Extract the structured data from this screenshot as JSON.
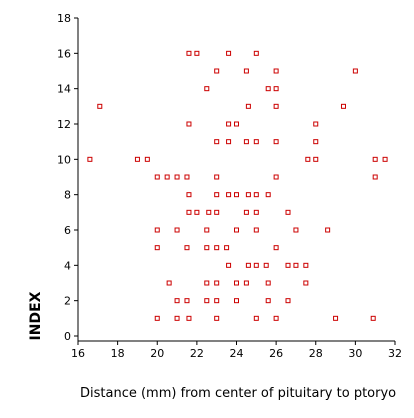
{
  "chart_data": {
    "type": "scatter",
    "title": "",
    "xlabel": "Distance (mm) from center of pituitary to ptoryo",
    "ylabel": "INDEX",
    "xlim": [
      16,
      32
    ],
    "ylim": [
      0,
      18
    ],
    "xticks": [
      16,
      18,
      20,
      22,
      24,
      26,
      28,
      30,
      32
    ],
    "yticks": [
      0,
      2,
      4,
      6,
      8,
      10,
      12,
      14,
      16,
      18
    ],
    "grid": false,
    "legend": "none",
    "marker": "hollow-square",
    "marker_color": "#cc0000",
    "points": [
      {
        "x": 21.6,
        "y": 16
      },
      {
        "x": 22.0,
        "y": 16
      },
      {
        "x": 23.6,
        "y": 16
      },
      {
        "x": 25.0,
        "y": 16
      },
      {
        "x": 23.0,
        "y": 15
      },
      {
        "x": 24.5,
        "y": 15
      },
      {
        "x": 26.0,
        "y": 15
      },
      {
        "x": 30.0,
        "y": 15
      },
      {
        "x": 22.5,
        "y": 14
      },
      {
        "x": 25.6,
        "y": 14
      },
      {
        "x": 26.0,
        "y": 14
      },
      {
        "x": 17.1,
        "y": 13
      },
      {
        "x": 24.6,
        "y": 13
      },
      {
        "x": 26.0,
        "y": 13
      },
      {
        "x": 29.4,
        "y": 13
      },
      {
        "x": 21.6,
        "y": 12
      },
      {
        "x": 23.6,
        "y": 12
      },
      {
        "x": 24.0,
        "y": 12
      },
      {
        "x": 28.0,
        "y": 12
      },
      {
        "x": 23.0,
        "y": 11
      },
      {
        "x": 23.6,
        "y": 11
      },
      {
        "x": 24.5,
        "y": 11
      },
      {
        "x": 25.0,
        "y": 11
      },
      {
        "x": 26.0,
        "y": 11
      },
      {
        "x": 28.0,
        "y": 11
      },
      {
        "x": 16.6,
        "y": 10
      },
      {
        "x": 19.0,
        "y": 10
      },
      {
        "x": 19.5,
        "y": 10
      },
      {
        "x": 27.6,
        "y": 10
      },
      {
        "x": 28.0,
        "y": 10
      },
      {
        "x": 31.0,
        "y": 10
      },
      {
        "x": 31.5,
        "y": 10
      },
      {
        "x": 20.0,
        "y": 9
      },
      {
        "x": 20.5,
        "y": 9
      },
      {
        "x": 21.0,
        "y": 9
      },
      {
        "x": 21.5,
        "y": 9
      },
      {
        "x": 23.0,
        "y": 9
      },
      {
        "x": 26.0,
        "y": 9
      },
      {
        "x": 31.0,
        "y": 9
      },
      {
        "x": 21.6,
        "y": 8
      },
      {
        "x": 23.0,
        "y": 8
      },
      {
        "x": 23.6,
        "y": 8
      },
      {
        "x": 24.0,
        "y": 8
      },
      {
        "x": 24.6,
        "y": 8
      },
      {
        "x": 25.0,
        "y": 8
      },
      {
        "x": 25.6,
        "y": 8
      },
      {
        "x": 21.6,
        "y": 7
      },
      {
        "x": 22.0,
        "y": 7
      },
      {
        "x": 22.6,
        "y": 7
      },
      {
        "x": 23.0,
        "y": 7
      },
      {
        "x": 24.5,
        "y": 7
      },
      {
        "x": 25.0,
        "y": 7
      },
      {
        "x": 26.6,
        "y": 7
      },
      {
        "x": 20.0,
        "y": 6
      },
      {
        "x": 21.0,
        "y": 6
      },
      {
        "x": 22.5,
        "y": 6
      },
      {
        "x": 24.0,
        "y": 6
      },
      {
        "x": 25.0,
        "y": 6
      },
      {
        "x": 27.0,
        "y": 6
      },
      {
        "x": 28.6,
        "y": 6
      },
      {
        "x": 20.0,
        "y": 5
      },
      {
        "x": 21.5,
        "y": 5
      },
      {
        "x": 22.5,
        "y": 5
      },
      {
        "x": 23.0,
        "y": 5
      },
      {
        "x": 23.5,
        "y": 5
      },
      {
        "x": 26.0,
        "y": 5
      },
      {
        "x": 23.6,
        "y": 4
      },
      {
        "x": 24.6,
        "y": 4
      },
      {
        "x": 25.0,
        "y": 4
      },
      {
        "x": 25.5,
        "y": 4
      },
      {
        "x": 26.6,
        "y": 4
      },
      {
        "x": 27.0,
        "y": 4
      },
      {
        "x": 27.5,
        "y": 4
      },
      {
        "x": 20.6,
        "y": 3
      },
      {
        "x": 22.5,
        "y": 3
      },
      {
        "x": 23.0,
        "y": 3
      },
      {
        "x": 24.0,
        "y": 3
      },
      {
        "x": 24.5,
        "y": 3
      },
      {
        "x": 25.6,
        "y": 3
      },
      {
        "x": 27.5,
        "y": 3
      },
      {
        "x": 21.0,
        "y": 2
      },
      {
        "x": 21.5,
        "y": 2
      },
      {
        "x": 22.5,
        "y": 2
      },
      {
        "x": 23.0,
        "y": 2
      },
      {
        "x": 24.0,
        "y": 2
      },
      {
        "x": 25.6,
        "y": 2
      },
      {
        "x": 26.6,
        "y": 2
      },
      {
        "x": 20.0,
        "y": 1
      },
      {
        "x": 21.0,
        "y": 1
      },
      {
        "x": 21.6,
        "y": 1
      },
      {
        "x": 23.0,
        "y": 1
      },
      {
        "x": 25.0,
        "y": 1
      },
      {
        "x": 26.0,
        "y": 1
      },
      {
        "x": 29.0,
        "y": 1
      },
      {
        "x": 30.9,
        "y": 1
      }
    ]
  }
}
